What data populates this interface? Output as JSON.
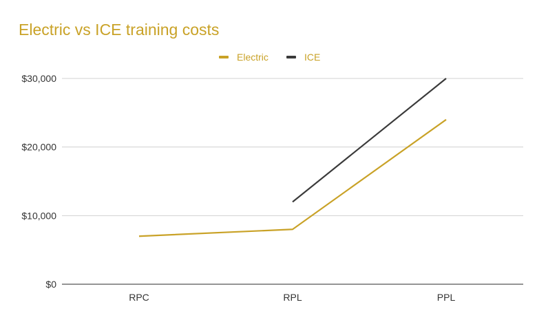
{
  "chart_data": {
    "type": "line",
    "title": "Electric vs ICE training costs",
    "xlabel": "",
    "ylabel": "",
    "categories": [
      "RPC",
      "RPL",
      "PPL"
    ],
    "series": [
      {
        "name": "Electric",
        "color": "#c9a227",
        "values": [
          7000,
          8000,
          24000
        ]
      },
      {
        "name": "ICE",
        "color": "#3a3a3a",
        "values": [
          null,
          12000,
          30000
        ]
      }
    ],
    "ylim": [
      0,
      30000
    ],
    "yticks": [
      0,
      10000,
      20000,
      30000
    ],
    "ytick_labels": [
      "$0",
      "$10,000",
      "$20,000",
      "$30,000"
    ],
    "grid": true,
    "legend_position": "top"
  }
}
